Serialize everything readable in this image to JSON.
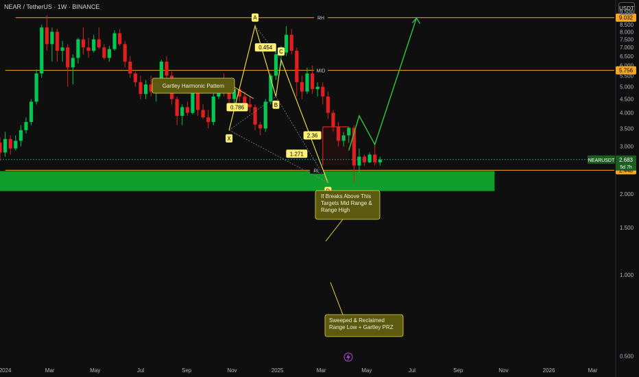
{
  "header": {
    "title": "NEAR / TetherUS · 1W · BINANCE",
    "currency_button": "USDT"
  },
  "colors": {
    "background": "#0f0f0f",
    "bull": "#00c853",
    "bear": "#e0201f",
    "level_line": "#f5a623",
    "pattern_line": "#e8d84a",
    "projection": "#2ecc40",
    "zone": "#0f9d2b",
    "label_bg": "#fff176",
    "note_bg": "#5c5a10"
  },
  "chart_data": {
    "type": "candlestick",
    "symbol": "NEARUSDT",
    "interval": "1W",
    "y_scale": "log",
    "ylim": [
      0.47,
      10.5
    ],
    "xlim": [
      "2023-12-25",
      "2026-03-30"
    ],
    "y_ticks": [
      "9.500",
      "9.000",
      "8.500",
      "8.000",
      "7.500",
      "7.000",
      "6.500",
      "6.000",
      "5.500",
      "5.000",
      "4.500",
      "4.000",
      "3.500",
      "3.000",
      "2.500",
      "2.000",
      "1.500",
      "1.000",
      "0.500"
    ],
    "x_ticks": [
      {
        "label": "2024",
        "date": "2024-01-01"
      },
      {
        "label": "Mar",
        "date": "2024-03-01"
      },
      {
        "label": "May",
        "date": "2024-05-01"
      },
      {
        "label": "Jul",
        "date": "2024-07-01"
      },
      {
        "label": "Sep",
        "date": "2024-09-01"
      },
      {
        "label": "Nov",
        "date": "2024-11-01"
      },
      {
        "label": "2025",
        "date": "2025-01-01"
      },
      {
        "label": "Mar",
        "date": "2025-03-01"
      },
      {
        "label": "May",
        "date": "2025-05-01"
      },
      {
        "label": "Jul",
        "date": "2025-07-01"
      },
      {
        "label": "Sep",
        "date": "2025-09-01"
      },
      {
        "label": "Nov",
        "date": "2025-11-01"
      },
      {
        "label": "2026",
        "date": "2026-01-01"
      },
      {
        "label": "Mar",
        "date": "2026-03-01"
      }
    ],
    "candles_start": "2023-12-11",
    "candles": [
      [
        3.7,
        4.1,
        3.1,
        3.3
      ],
      [
        3.3,
        3.55,
        2.9,
        3.1
      ],
      [
        3.1,
        3.25,
        2.65,
        2.85
      ],
      [
        2.85,
        3.4,
        2.75,
        3.2
      ],
      [
        3.2,
        3.3,
        2.8,
        2.95
      ],
      [
        2.95,
        3.3,
        2.9,
        3.15
      ],
      [
        3.15,
        3.6,
        3.0,
        3.45
      ],
      [
        3.45,
        3.85,
        3.35,
        3.7
      ],
      [
        3.7,
        4.5,
        3.6,
        4.4
      ],
      [
        4.4,
        5.8,
        4.3,
        5.6
      ],
      [
        5.6,
        8.5,
        5.4,
        8.3
      ],
      [
        8.3,
        9.2,
        6.8,
        7.2
      ],
      [
        7.2,
        8.3,
        6.2,
        8.0
      ],
      [
        8.0,
        8.2,
        6.2,
        6.8
      ],
      [
        6.8,
        7.4,
        6.2,
        7.0
      ],
      [
        7.0,
        7.2,
        5.0,
        5.9
      ],
      [
        5.9,
        6.6,
        5.1,
        6.4
      ],
      [
        6.4,
        7.6,
        6.1,
        7.5
      ],
      [
        7.5,
        8.3,
        6.6,
        7.0
      ],
      [
        7.0,
        7.6,
        6.4,
        6.8
      ],
      [
        6.8,
        7.8,
        6.7,
        7.5
      ],
      [
        7.5,
        8.3,
        6.9,
        7.0
      ],
      [
        7.0,
        7.2,
        6.3,
        6.4
      ],
      [
        6.4,
        7.1,
        6.2,
        6.9
      ],
      [
        6.9,
        8.1,
        6.8,
        7.9
      ],
      [
        7.9,
        8.2,
        7.1,
        7.2
      ],
      [
        7.2,
        7.4,
        5.9,
        6.2
      ],
      [
        6.2,
        6.5,
        5.4,
        5.6
      ],
      [
        5.6,
        5.7,
        5.0,
        5.2
      ],
      [
        5.2,
        5.5,
        4.5,
        4.7
      ],
      [
        4.7,
        5.3,
        4.5,
        5.1
      ],
      [
        5.1,
        5.5,
        4.6,
        4.8
      ],
      [
        4.8,
        5.4,
        4.4,
        5.3
      ],
      [
        5.3,
        6.3,
        5.2,
        6.2
      ],
      [
        6.2,
        6.5,
        5.3,
        5.5
      ],
      [
        5.5,
        5.7,
        4.3,
        4.5
      ],
      [
        4.5,
        4.6,
        3.6,
        3.9
      ],
      [
        3.9,
        4.3,
        3.6,
        4.2
      ],
      [
        4.2,
        4.4,
        3.9,
        4.0
      ],
      [
        4.0,
        5.0,
        3.95,
        4.8
      ],
      [
        4.8,
        4.9,
        3.9,
        4.1
      ],
      [
        4.1,
        4.3,
        3.8,
        3.85
      ],
      [
        3.85,
        4.1,
        3.5,
        3.7
      ],
      [
        3.7,
        4.8,
        3.6,
        4.6
      ],
      [
        4.6,
        5.3,
        4.5,
        5.1
      ],
      [
        5.1,
        5.6,
        4.6,
        4.8
      ],
      [
        4.8,
        5.0,
        4.2,
        4.5
      ],
      [
        4.5,
        5.0,
        4.3,
        4.9
      ],
      [
        4.9,
        4.95,
        4.4,
        4.6
      ],
      [
        4.6,
        4.8,
        4.1,
        4.3
      ],
      [
        4.3,
        4.6,
        4.0,
        4.2
      ],
      [
        4.2,
        4.3,
        3.45,
        3.62
      ],
      [
        3.62,
        3.7,
        3.3,
        3.5
      ],
      [
        3.5,
        4.5,
        3.4,
        4.4
      ],
      [
        4.4,
        5.6,
        4.3,
        5.5
      ],
      [
        5.5,
        6.8,
        5.3,
        6.6
      ],
      [
        6.6,
        7.1,
        6.0,
        6.7
      ],
      [
        6.7,
        8.4,
        6.5,
        7.8
      ],
      [
        7.8,
        8.2,
        6.6,
        6.8
      ],
      [
        6.8,
        7.0,
        4.6,
        5.2
      ],
      [
        5.2,
        5.5,
        4.5,
        4.8
      ],
      [
        4.8,
        5.9,
        4.7,
        5.6
      ],
      [
        5.6,
        6.0,
        4.7,
        4.9
      ],
      [
        4.9,
        5.2,
        4.6,
        5.0
      ],
      [
        5.0,
        5.2,
        4.3,
        4.6
      ],
      [
        4.6,
        4.8,
        3.8,
        4.0
      ],
      [
        4.0,
        4.1,
        3.4,
        3.55
      ],
      [
        3.55,
        3.7,
        3.0,
        3.15
      ],
      [
        3.15,
        3.4,
        3.0,
        3.3
      ],
      [
        3.3,
        3.55,
        3.1,
        3.52
      ],
      [
        3.52,
        3.6,
        2.2,
        2.55
      ],
      [
        2.55,
        2.95,
        2.4,
        2.75
      ],
      [
        2.75,
        2.8,
        2.55,
        2.62
      ],
      [
        2.62,
        2.85,
        2.6,
        2.8
      ],
      [
        2.8,
        3.1,
        2.55,
        2.62
      ],
      [
        2.62,
        2.75,
        2.55,
        2.68
      ]
    ],
    "horizontal_levels": [
      {
        "label": "RH",
        "value": 9.032,
        "price_tag": "9.032"
      },
      {
        "label": "MID",
        "value": 5.756,
        "price_tag": "5.756"
      },
      {
        "label": "RL",
        "value": 2.448,
        "price_tag": "2.448"
      }
    ],
    "current_price": {
      "symbol": "NEARUSDT",
      "value": 2.683,
      "price_tag": "2.683",
      "countdown": "5d 7h"
    },
    "demand_zone": {
      "from": 2.05,
      "to": 2.43,
      "x_start": "2023-12-25",
      "x_end": "2025-10-20"
    },
    "harmonic_pattern": {
      "name": "Gartley Harmonic Pattern",
      "points": [
        {
          "label": "X",
          "date": "2024-10-28",
          "value": 3.45
        },
        {
          "label": "A",
          "date": "2024-12-02",
          "value": 8.42
        },
        {
          "label": "B",
          "date": "2024-12-30",
          "value": 4.6
        },
        {
          "label": "C",
          "date": "2025-01-06",
          "value": 6.3
        },
        {
          "label": "D",
          "date": "2025-03-10",
          "value": 2.2
        }
      ],
      "ratios": [
        {
          "label": "0.786",
          "date": "2024-11-08",
          "value": 4.2
        },
        {
          "label": "0.454",
          "date": "2024-12-16",
          "value": 7.0
        },
        {
          "label": "2.36",
          "date": "2025-02-17",
          "value": 3.3
        },
        {
          "label": "1.271",
          "date": "2025-01-27",
          "value": 2.82
        }
      ]
    },
    "breakout_box": {
      "from_date": "2025-03-03",
      "to_date": "2025-04-07",
      "value": 3.55
    },
    "projection_path": [
      {
        "date": "2025-04-07",
        "value": 2.9
      },
      {
        "date": "2025-04-21",
        "value": 3.9
      },
      {
        "date": "2025-05-12",
        "value": 3.05
      },
      {
        "date": "2025-07-07",
        "value": 9.0
      }
    ],
    "annotations": [
      {
        "text": "If Breaks Above This Targets Mid Range & Range High",
        "lines": [
          "If Breaks Above This",
          "Targets Mid Range &",
          "Range High"
        ]
      },
      {
        "text": "Sweeped & Reclaimed Range Low + Gartley PRZ",
        "lines": [
          "Sweeped & Reclaimed",
          "Range Low + Gartley PRZ"
        ]
      }
    ]
  }
}
